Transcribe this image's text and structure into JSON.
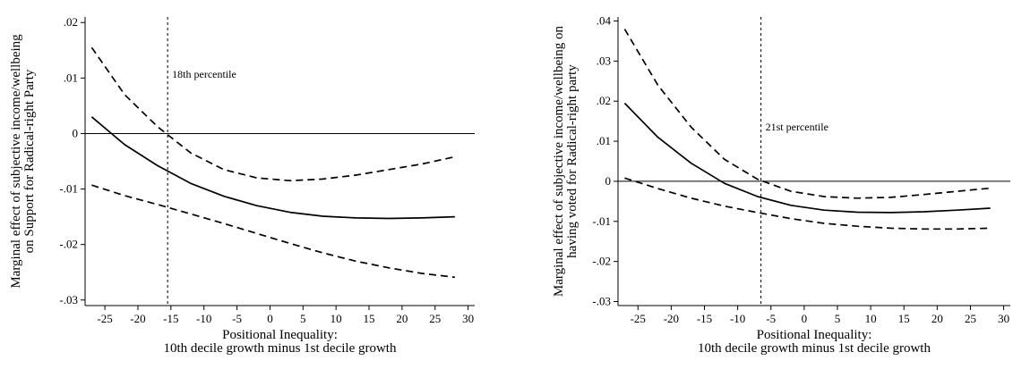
{
  "chart_data": [
    {
      "type": "line",
      "ylabel": [
        "Marginal effect of subjective income/wellbeing",
        "on Support for Radical-right Party"
      ],
      "xlabel": [
        "Positional Inequality:",
        "10th decile growth minus 1st decile growth"
      ],
      "xlim": [
        -28,
        31
      ],
      "ylim": [
        -0.031,
        0.021
      ],
      "xticks": [
        -25,
        -20,
        -15,
        -10,
        -5,
        0,
        5,
        10,
        15,
        20,
        25,
        30
      ],
      "yticks": [
        -0.03,
        -0.02,
        -0.01,
        0,
        0.01,
        0.02
      ],
      "ytick_labels": [
        "-.03",
        "-.02",
        "-.01",
        "0",
        ".01",
        ".02"
      ],
      "grid": false,
      "reference_line_y": 0,
      "vline": {
        "x": -15.5,
        "label": "18th percentile"
      },
      "series": [
        {
          "style": "solid",
          "x": [
            -27,
            -22,
            -17,
            -12,
            -7,
            -2,
            3,
            8,
            13,
            18,
            23,
            28
          ],
          "y": [
            0.003,
            -0.002,
            -0.0058,
            -0.009,
            -0.0113,
            -0.013,
            -0.0142,
            -0.0149,
            -0.0152,
            -0.0153,
            -0.0152,
            -0.015
          ]
        },
        {
          "style": "dashed",
          "x": [
            -27,
            -22,
            -17,
            -12,
            -7,
            -2,
            3,
            8,
            13,
            18,
            23,
            28
          ],
          "y": [
            0.0155,
            0.007,
            0.0012,
            -0.0035,
            -0.0065,
            -0.008,
            -0.0085,
            -0.0082,
            -0.0075,
            -0.0065,
            -0.0055,
            -0.0042
          ]
        },
        {
          "style": "dashed",
          "x": [
            -27,
            -22,
            -17,
            -12,
            -7,
            -2,
            3,
            8,
            13,
            18,
            23,
            28
          ],
          "y": [
            -0.0093,
            -0.0112,
            -0.0128,
            -0.0145,
            -0.0162,
            -0.018,
            -0.0198,
            -0.0215,
            -0.023,
            -0.0242,
            -0.0252,
            -0.0259
          ]
        }
      ]
    },
    {
      "type": "line",
      "ylabel": [
        "Marginal effect of subjective income/wellbeing on",
        "having voted for Radical-right party"
      ],
      "xlabel": [
        "Positional Inequality:",
        "10th decile growth minus 1st decile growth"
      ],
      "xlim": [
        -28,
        31
      ],
      "ylim": [
        -0.031,
        0.041
      ],
      "xticks": [
        -25,
        -20,
        -15,
        -10,
        -5,
        0,
        5,
        10,
        15,
        20,
        25,
        30
      ],
      "yticks": [
        -0.03,
        -0.02,
        -0.01,
        0,
        0.01,
        0.02,
        0.03,
        0.04
      ],
      "ytick_labels": [
        "-.03",
        "-.02",
        "-.01",
        "0",
        ".01",
        ".02",
        ".03",
        ".04"
      ],
      "grid": false,
      "reference_line_y": 0,
      "vline": {
        "x": -6.5,
        "label": "21st percentile"
      },
      "series": [
        {
          "style": "solid",
          "x": [
            -27,
            -22,
            -17,
            -12,
            -7,
            -2,
            3,
            8,
            13,
            18,
            23,
            28
          ],
          "y": [
            0.0195,
            0.011,
            0.0045,
            -0.0005,
            -0.0038,
            -0.006,
            -0.0072,
            -0.0077,
            -0.0078,
            -0.0076,
            -0.0072,
            -0.0067
          ]
        },
        {
          "style": "dashed",
          "x": [
            -27,
            -22,
            -17,
            -12,
            -7,
            -2,
            3,
            8,
            13,
            18,
            23,
            28
          ],
          "y": [
            0.038,
            0.024,
            0.0135,
            0.0055,
            0.0005,
            -0.0025,
            -0.0038,
            -0.0042,
            -0.004,
            -0.0033,
            -0.0025,
            -0.0017
          ]
        },
        {
          "style": "dashed",
          "x": [
            -27,
            -22,
            -17,
            -12,
            -7,
            -2,
            3,
            8,
            13,
            18,
            23,
            28
          ],
          "y": [
            0.0008,
            -0.0018,
            -0.0042,
            -0.0062,
            -0.0078,
            -0.0093,
            -0.0105,
            -0.0112,
            -0.0117,
            -0.0119,
            -0.0119,
            -0.0117
          ]
        }
      ]
    }
  ]
}
